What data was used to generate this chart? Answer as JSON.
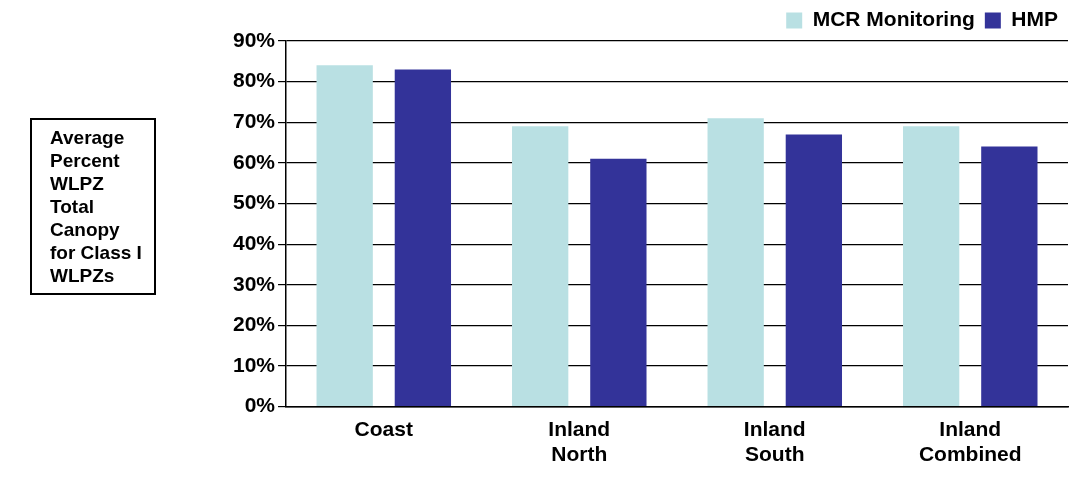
{
  "chart_data": {
    "type": "bar",
    "ylabel": "Average Percent WLPZ Total Canopy for Class I WLPZs",
    "categories": [
      "Coast",
      "Inland North",
      "Inland South",
      "Inland Combined"
    ],
    "series": [
      {
        "name": "MCR Monitoring",
        "color": "#b9e0e3",
        "values": [
          84,
          69,
          71,
          69
        ]
      },
      {
        "name": "HMP",
        "color": "#333399",
        "values": [
          83,
          61,
          67,
          64
        ]
      }
    ],
    "ylim": [
      0,
      90
    ],
    "yticks": [
      {
        "value": 0,
        "label": "0%"
      },
      {
        "value": 10,
        "label": "10%"
      },
      {
        "value": 20,
        "label": "20%"
      },
      {
        "value": 30,
        "label": "30%"
      },
      {
        "value": 40,
        "label": "40%"
      },
      {
        "value": 50,
        "label": "50%"
      },
      {
        "value": 60,
        "label": "60%"
      },
      {
        "value": 70,
        "label": "70%"
      },
      {
        "value": 80,
        "label": "80%"
      },
      {
        "value": 90,
        "label": "90%"
      }
    ],
    "grid": "y",
    "legend": "top right"
  }
}
